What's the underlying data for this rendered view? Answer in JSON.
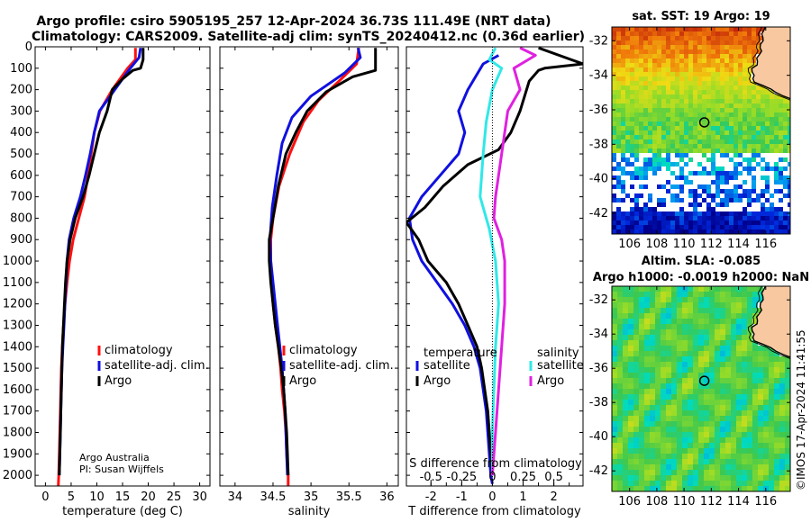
{
  "title": {
    "line1": "Argo profile: csiro 5905195_257 12-Apr-2024 36.73S 111.49E (NRT data)",
    "line2": "Climatology: CARS2009. Satellite-adj clim: synTS_20240412.nc (0.36d earlier)"
  },
  "credits": {
    "org": "Argo Australia",
    "pi": "PI: Susan Wijffels"
  },
  "watermark": "©IMOS 17-Apr-2024 11:41:55",
  "colors": {
    "red": "#ff1010",
    "blue": "#1010e0",
    "black": "#000000",
    "cyan": "#30e8e8",
    "magenta": "#e020e0"
  },
  "chart_data": [
    {
      "type": "line",
      "id": "temperature",
      "xlabel": "temperature (deg C)",
      "xlim": [
        -2,
        32
      ],
      "ylim": [
        2050,
        0
      ],
      "xticks": [
        0,
        5,
        10,
        15,
        20,
        25,
        30
      ],
      "yticks": [
        0,
        100,
        200,
        300,
        400,
        500,
        600,
        700,
        800,
        900,
        1000,
        1100,
        1200,
        1300,
        1400,
        1500,
        1600,
        1700,
        1800,
        1900,
        2000
      ],
      "legend": {
        "position": "center-right",
        "entries": [
          "climatology",
          "satellite-adj. clim.",
          "Argo"
        ]
      },
      "series": [
        {
          "name": "climatology",
          "color": "red",
          "points": [
            [
              17.5,
              5
            ],
            [
              17.5,
              60
            ],
            [
              16,
              100
            ],
            [
              13,
              200
            ],
            [
              10.6,
              300
            ],
            [
              9.5,
              400
            ],
            [
              8.9,
              500
            ],
            [
              8.3,
              600
            ],
            [
              7.6,
              700
            ],
            [
              6.5,
              800
            ],
            [
              5.4,
              900
            ],
            [
              4.7,
              1000
            ],
            [
              4.2,
              1100
            ],
            [
              3.8,
              1200
            ],
            [
              3.5,
              1300
            ],
            [
              3.3,
              1400
            ],
            [
              3.1,
              1500
            ],
            [
              3.0,
              1600
            ],
            [
              2.9,
              1700
            ],
            [
              2.8,
              1800
            ],
            [
              2.7,
              1900
            ],
            [
              2.6,
              2000
            ],
            [
              2.5,
              2050
            ]
          ]
        },
        {
          "name": "satellite-adj. clim.",
          "color": "blue",
          "points": [
            [
              18.5,
              5
            ],
            [
              18.2,
              50
            ],
            [
              16.5,
              100
            ],
            [
              13.5,
              200
            ],
            [
              10.5,
              300
            ],
            [
              9.5,
              400
            ],
            [
              8.7,
              500
            ],
            [
              7.8,
              600
            ],
            [
              6.8,
              700
            ],
            [
              5.5,
              800
            ],
            [
              4.6,
              900
            ],
            [
              4.2,
              1000
            ],
            [
              4.0,
              1100
            ],
            [
              3.8,
              1200
            ],
            [
              3.6,
              1300
            ],
            [
              3.4,
              1400
            ],
            [
              3.2,
              1500
            ],
            [
              3.1,
              1600
            ],
            [
              3.0,
              1700
            ],
            [
              2.9,
              1800
            ],
            [
              2.8,
              1900
            ],
            [
              2.7,
              2000
            ]
          ]
        },
        {
          "name": "Argo",
          "color": "black",
          "points": [
            [
              19,
              5
            ],
            [
              19,
              60
            ],
            [
              18.5,
              100
            ],
            [
              17,
              110
            ],
            [
              15,
              150
            ],
            [
              13,
              200
            ],
            [
              12,
              300
            ],
            [
              10.5,
              400
            ],
            [
              9.5,
              500
            ],
            [
              8.5,
              600
            ],
            [
              7.3,
              700
            ],
            [
              5.8,
              800
            ],
            [
              4.8,
              900
            ],
            [
              4.2,
              1000
            ],
            [
              3.9,
              1100
            ],
            [
              3.7,
              1200
            ],
            [
              3.5,
              1300
            ],
            [
              3.3,
              1400
            ],
            [
              3.2,
              1500
            ],
            [
              3.1,
              1600
            ],
            [
              3.0,
              1700
            ],
            [
              2.9,
              1800
            ],
            [
              2.8,
              1900
            ],
            [
              2.7,
              2000
            ]
          ]
        }
      ]
    },
    {
      "type": "line",
      "id": "salinity",
      "xlabel": "salinity",
      "xlim": [
        33.8,
        36.15
      ],
      "ylim": [
        2050,
        0
      ],
      "xticks": [
        34,
        34.5,
        35,
        35.5,
        36
      ],
      "yticks": [
        0,
        100,
        200,
        300,
        400,
        500,
        600,
        700,
        800,
        900,
        1000,
        1100,
        1200,
        1300,
        1400,
        1500,
        1600,
        1700,
        1800,
        1900,
        2000
      ],
      "legend": {
        "position": "center-right",
        "entries": [
          "climatology",
          "satellite-adj. clim.",
          "Argo"
        ]
      },
      "series": [
        {
          "name": "climatology",
          "color": "red",
          "points": [
            [
              35.63,
              5
            ],
            [
              35.6,
              80
            ],
            [
              35.4,
              150
            ],
            [
              35.1,
              250
            ],
            [
              34.9,
              350
            ],
            [
              34.72,
              500
            ],
            [
              34.58,
              650
            ],
            [
              34.5,
              800
            ],
            [
              34.47,
              900
            ],
            [
              34.47,
              1000
            ],
            [
              34.48,
              1100
            ],
            [
              34.5,
              1200
            ],
            [
              34.53,
              1300
            ],
            [
              34.57,
              1400
            ],
            [
              34.6,
              1500
            ],
            [
              34.62,
              1600
            ],
            [
              34.65,
              1700
            ],
            [
              34.67,
              1800
            ],
            [
              34.68,
              1900
            ],
            [
              34.7,
              2000
            ],
            [
              34.7,
              2050
            ]
          ]
        },
        {
          "name": "satellite-adj. clim.",
          "color": "blue",
          "points": [
            [
              35.62,
              5
            ],
            [
              35.65,
              50
            ],
            [
              35.45,
              120
            ],
            [
              35.0,
              230
            ],
            [
              34.75,
              330
            ],
            [
              34.62,
              450
            ],
            [
              34.55,
              600
            ],
            [
              34.49,
              750
            ],
            [
              34.46,
              900
            ],
            [
              34.47,
              1000
            ],
            [
              34.5,
              1100
            ],
            [
              34.53,
              1200
            ],
            [
              34.56,
              1300
            ],
            [
              34.59,
              1400
            ],
            [
              34.62,
              1500
            ],
            [
              34.64,
              1600
            ],
            [
              34.66,
              1700
            ],
            [
              34.67,
              1800
            ],
            [
              34.68,
              1900
            ],
            [
              34.69,
              2000
            ]
          ]
        },
        {
          "name": "Argo",
          "color": "black",
          "points": [
            [
              35.85,
              5
            ],
            [
              35.85,
              110
            ],
            [
              35.55,
              140
            ],
            [
              35.2,
              210
            ],
            [
              34.95,
              300
            ],
            [
              34.8,
              400
            ],
            [
              34.67,
              500
            ],
            [
              34.57,
              650
            ],
            [
              34.5,
              800
            ],
            [
              34.45,
              900
            ],
            [
              34.45,
              1000
            ],
            [
              34.47,
              1100
            ],
            [
              34.5,
              1200
            ],
            [
              34.53,
              1300
            ],
            [
              34.57,
              1400
            ],
            [
              34.61,
              1500
            ],
            [
              34.64,
              1600
            ],
            [
              34.66,
              1700
            ],
            [
              34.68,
              1800
            ],
            [
              34.69,
              1900
            ],
            [
              34.7,
              2000
            ]
          ]
        }
      ]
    },
    {
      "type": "line",
      "id": "difference",
      "xlabel": "T difference from climatology",
      "xlabel_top": "S difference from climatology",
      "xlim": [
        -2.8,
        2.95
      ],
      "ylim": [
        2050,
        0
      ],
      "xticks": [
        -2,
        -1.5,
        -1,
        -0.5,
        0,
        0.5,
        1,
        1.5,
        2,
        2.5
      ],
      "xticklabels": [
        "-2",
        "",
        "-1",
        "",
        "0",
        "",
        "1",
        "",
        "2",
        ""
      ],
      "top_ticks": [
        -0.5,
        -0.25,
        0,
        0.25,
        0.5
      ],
      "top_tick_labels": [
        "-0.5",
        "-0.25",
        "0",
        "0.25",
        "0.5"
      ],
      "top_scale": 4,
      "yticks": [
        0,
        100,
        200,
        300,
        400,
        500,
        600,
        700,
        800,
        900,
        1000,
        1100,
        1200,
        1300,
        1400,
        1500,
        1600,
        1700,
        1800,
        1900,
        2000
      ],
      "legend": {
        "position": "center",
        "temperature_header": "temperature",
        "salinity_header": "salinity",
        "entries": [
          "satellite",
          "Argo",
          "satellite",
          "Argo"
        ]
      },
      "series": [
        {
          "name": "T satellite",
          "color": "blue",
          "points": [
            [
              0.2,
              40
            ],
            [
              -0.3,
              80
            ],
            [
              -0.8,
              200
            ],
            [
              -1.1,
              300
            ],
            [
              -0.9,
              400
            ],
            [
              -1.1,
              500
            ],
            [
              -1.7,
              600
            ],
            [
              -2.3,
              700
            ],
            [
              -2.7,
              800
            ],
            [
              -2.6,
              900
            ],
            [
              -2.3,
              1000
            ],
            [
              -1.8,
              1100
            ],
            [
              -1.3,
              1200
            ],
            [
              -0.9,
              1300
            ],
            [
              -0.6,
              1400
            ],
            [
              -0.4,
              1500
            ],
            [
              -0.3,
              1600
            ],
            [
              -0.2,
              1700
            ],
            [
              -0.15,
              1800
            ],
            [
              -0.1,
              1900
            ],
            [
              -0.05,
              2000
            ],
            [
              0,
              2040
            ]
          ]
        },
        {
          "name": "T Argo",
          "color": "black",
          "points": [
            [
              1.5,
              5
            ],
            [
              2.95,
              80
            ],
            [
              1.7,
              100
            ],
            [
              1.5,
              110
            ],
            [
              1.2,
              160
            ],
            [
              0.9,
              300
            ],
            [
              0.6,
              400
            ],
            [
              0.2,
              480
            ],
            [
              -0.8,
              550
            ],
            [
              -1.6,
              650
            ],
            [
              -2.2,
              750
            ],
            [
              -2.8,
              820
            ],
            [
              -2.4,
              900
            ],
            [
              -2.1,
              1000
            ],
            [
              -1.5,
              1100
            ],
            [
              -1.1,
              1200
            ],
            [
              -0.8,
              1300
            ],
            [
              -0.5,
              1400
            ],
            [
              -0.35,
              1500
            ],
            [
              -0.25,
              1600
            ],
            [
              -0.15,
              1700
            ],
            [
              -0.1,
              1800
            ],
            [
              -0.05,
              1900
            ],
            [
              0,
              2000
            ]
          ]
        },
        {
          "name": "S satellite",
          "color": "cyan",
          "points": [
            [
              0.1,
              5
            ],
            [
              -0.1,
              60
            ],
            [
              0.3,
              100
            ],
            [
              0.0,
              200
            ],
            [
              -0.2,
              350
            ],
            [
              -0.3,
              500
            ],
            [
              -0.4,
              700
            ],
            [
              -0.1,
              850
            ],
            [
              0.1,
              1000
            ],
            [
              0.2,
              1200
            ],
            [
              0.1,
              1400
            ],
            [
              0.05,
              1600
            ],
            [
              0.0,
              1800
            ],
            [
              0.0,
              2000
            ]
          ]
        },
        {
          "name": "S Argo",
          "color": "magenta",
          "points": [
            [
              0.9,
              5
            ],
            [
              1.4,
              40
            ],
            [
              0.7,
              100
            ],
            [
              0.9,
              200
            ],
            [
              0.5,
              300
            ],
            [
              0.3,
              500
            ],
            [
              0.1,
              700
            ],
            [
              0.05,
              800
            ],
            [
              0.3,
              900
            ],
            [
              0.4,
              1000
            ],
            [
              0.4,
              1200
            ],
            [
              0.3,
              1400
            ],
            [
              0.2,
              1600
            ],
            [
              0.1,
              1800
            ],
            [
              0.0,
              2000
            ]
          ]
        }
      ]
    },
    {
      "type": "heatmap",
      "id": "sst_map",
      "title": "sat. SST: 19 Argo: 19",
      "xticks": [
        106,
        108,
        110,
        112,
        114,
        116
      ],
      "yticks": [
        -32,
        -34,
        -36,
        -38,
        -40,
        -42
      ],
      "xlim": [
        104.7,
        117.8
      ],
      "ylim": [
        -43.2,
        -31.2
      ],
      "argo_position": [
        111.49,
        -36.73
      ]
    },
    {
      "type": "heatmap",
      "id": "sla_map",
      "title": "Altim. SLA: -0.085",
      "subtitle": "Argo h1000: -0.0019 h2000: NaN",
      "xticks": [
        106,
        108,
        110,
        112,
        114,
        116
      ],
      "yticks": [
        -32,
        -34,
        -36,
        -38,
        -40,
        -42
      ],
      "xlim": [
        104.7,
        117.8
      ],
      "ylim": [
        -43.2,
        -31.2
      ],
      "argo_position": [
        111.49,
        -36.73
      ]
    }
  ]
}
